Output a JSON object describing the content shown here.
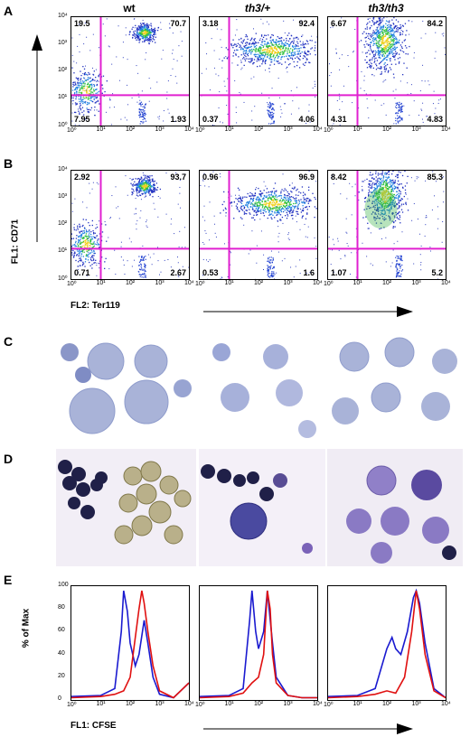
{
  "panels": {
    "A": "A",
    "B": "B",
    "C": "C",
    "D": "D",
    "E": "E"
  },
  "columns": [
    "wt",
    "th3/+",
    "th3/th3"
  ],
  "flow_A": [
    {
      "tl": "19.5",
      "tr": "70.7",
      "bl": "7.95",
      "br": "1.93"
    },
    {
      "tl": "3.18",
      "tr": "92.4",
      "bl": "0.37",
      "br": "4.06"
    },
    {
      "tl": "6.67",
      "tr": "84.2",
      "bl": "4.31",
      "br": "4.83"
    }
  ],
  "flow_B": [
    {
      "tl": "2.92",
      "tr": "93.7",
      "bl": "0.71",
      "br": "2.67"
    },
    {
      "tl": "0.96",
      "tr": "96.9",
      "bl": "0.53",
      "br": "1.6"
    },
    {
      "tl": "8.42",
      "tr": "85.3",
      "bl": "1.07",
      "br": "5.2"
    }
  ],
  "flow_y_ticks": [
    "10⁴",
    "10³",
    "10²",
    "10¹",
    "10⁰"
  ],
  "flow_x_ticks": [
    "10⁰",
    "10¹",
    "10²",
    "10³",
    "10⁴"
  ],
  "flow_ylabel": "FL1: CD71",
  "flow_xlabel": "FL2: Ter119",
  "hist_y_ticks": [
    "100",
    "80",
    "60",
    "40",
    "20",
    "0"
  ],
  "hist_x_ticks": [
    "10⁰",
    "10¹",
    "10²",
    "10³",
    "10⁴"
  ],
  "hist_ylabel": "% of Max",
  "hist_xlabel": "FL1: CFSE",
  "colors": {
    "gate": "#e020d0",
    "blue": "#1a1ad0",
    "red": "#e01010",
    "cell": "#a8b4d8",
    "stain": "#202048"
  },
  "chart_data": [
    {
      "type": "histogram",
      "panel": "E",
      "column": "wt",
      "series": [
        {
          "color": "blue",
          "x": [
            1,
            10,
            30,
            50,
            60,
            80,
            100,
            150,
            200,
            300,
            400,
            600,
            1000,
            3000,
            10000
          ],
          "values": [
            3,
            4,
            10,
            60,
            96,
            78,
            50,
            30,
            40,
            70,
            50,
            20,
            5,
            2,
            15
          ]
        },
        {
          "color": "red",
          "x": [
            1,
            10,
            30,
            60,
            100,
            150,
            200,
            250,
            300,
            400,
            600,
            1000,
            3000,
            10000
          ],
          "values": [
            2,
            3,
            5,
            8,
            20,
            55,
            80,
            96,
            85,
            60,
            30,
            8,
            2,
            15
          ]
        }
      ],
      "ylim": [
        0,
        100
      ]
    },
    {
      "type": "histogram",
      "panel": "E",
      "column": "th3/+",
      "series": [
        {
          "color": "blue",
          "x": [
            1,
            10,
            30,
            50,
            60,
            80,
            100,
            150,
            200,
            300,
            400,
            1000,
            3000,
            10000
          ],
          "values": [
            3,
            4,
            10,
            70,
            96,
            60,
            45,
            60,
            96,
            50,
            20,
            4,
            2,
            2
          ]
        },
        {
          "color": "red",
          "x": [
            1,
            10,
            30,
            60,
            100,
            150,
            200,
            250,
            300,
            400,
            1000,
            3000,
            10000
          ],
          "values": [
            2,
            3,
            6,
            15,
            20,
            40,
            96,
            80,
            40,
            15,
            4,
            2,
            2
          ]
        }
      ],
      "ylim": [
        0,
        100
      ]
    },
    {
      "type": "histogram",
      "panel": "E",
      "column": "th3/th3",
      "series": [
        {
          "color": "blue",
          "x": [
            1,
            10,
            40,
            100,
            150,
            200,
            300,
            500,
            800,
            1000,
            1300,
            2000,
            4000,
            10000
          ],
          "values": [
            3,
            4,
            10,
            45,
            55,
            45,
            40,
            60,
            90,
            96,
            85,
            50,
            10,
            2
          ]
        },
        {
          "color": "red",
          "x": [
            1,
            10,
            40,
            100,
            200,
            400,
            700,
            1000,
            1300,
            2000,
            4000,
            10000
          ],
          "values": [
            2,
            3,
            5,
            8,
            6,
            20,
            60,
            96,
            80,
            40,
            8,
            2
          ]
        }
      ],
      "ylim": [
        0,
        100
      ]
    }
  ]
}
